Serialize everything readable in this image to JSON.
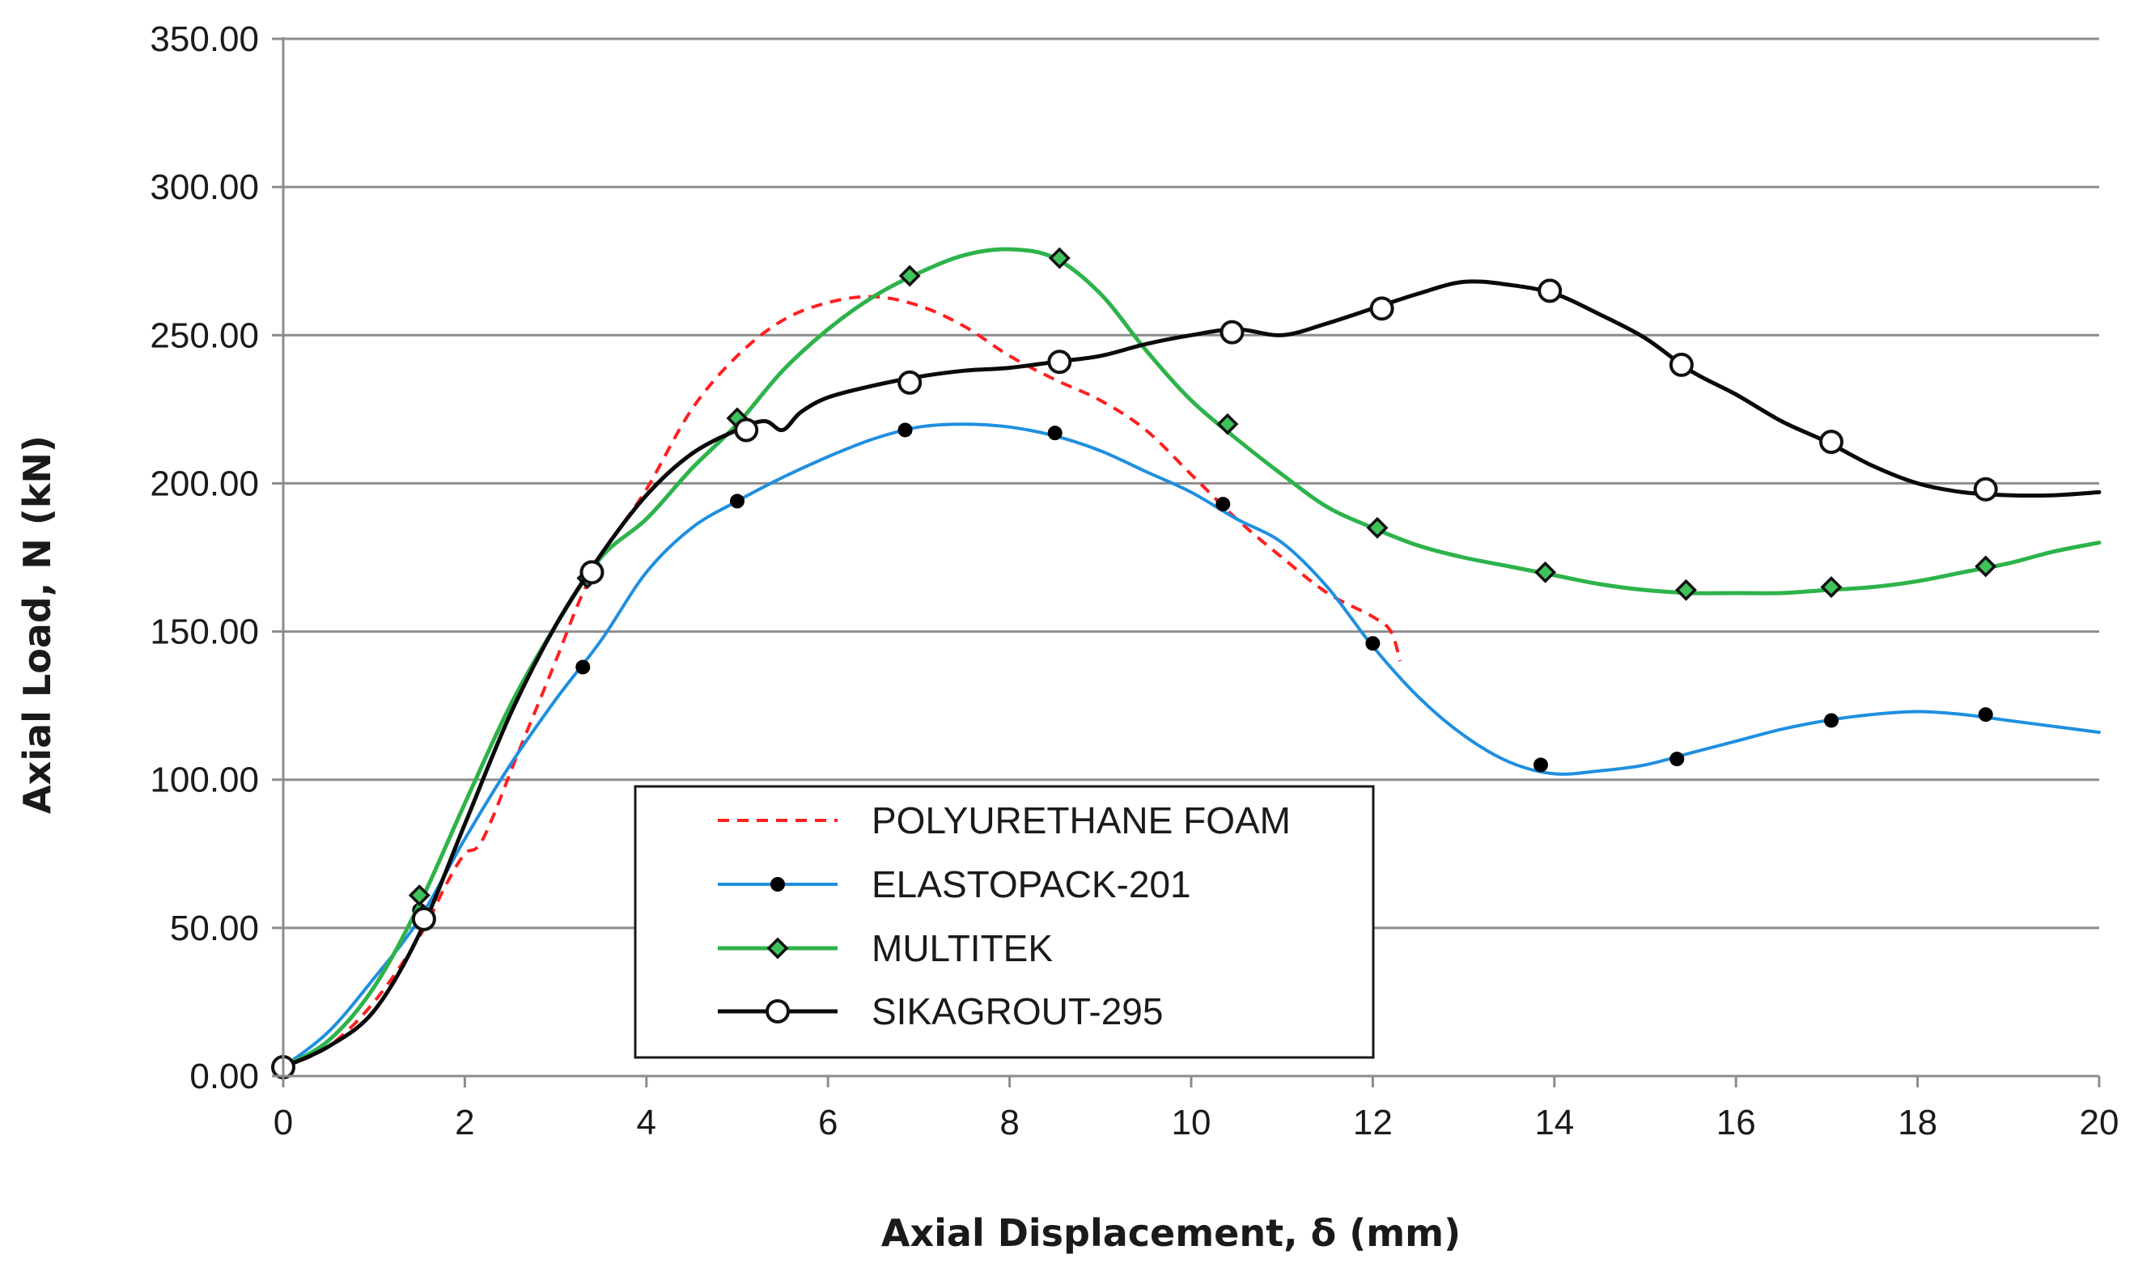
{
  "chart_data": {
    "type": "line",
    "title": "",
    "xlabel": "Axial Displacement, δ (mm)",
    "ylabel": "Axial Load, N (kN)",
    "xlim": [
      0,
      20
    ],
    "ylim": [
      0,
      350
    ],
    "x_ticks": [
      0,
      2,
      4,
      6,
      8,
      10,
      12,
      14,
      16,
      18,
      20
    ],
    "x_tick_labels": [
      "0",
      "2",
      "4",
      "6",
      "8",
      "10",
      "12",
      "14",
      "16",
      "18",
      "20"
    ],
    "y_ticks": [
      0,
      50,
      100,
      150,
      200,
      250,
      300,
      350
    ],
    "y_tick_labels": [
      "0.00",
      "50.00",
      "100.00",
      "150.00",
      "200.00",
      "250.00",
      "300.00",
      "350.00"
    ],
    "grid": "horizontal",
    "legend_position": "lower-center",
    "series": [
      {
        "name": "POLYURETHANE FOAM",
        "color": "#ff1f1f",
        "line_style": "dashed",
        "marker": "none",
        "curve": [
          [
            0,
            3
          ],
          [
            0.5,
            10
          ],
          [
            1.0,
            25
          ],
          [
            1.5,
            47
          ],
          [
            1.8,
            65
          ],
          [
            2.0,
            75
          ],
          [
            2.2,
            80
          ],
          [
            2.6,
            110
          ],
          [
            3.0,
            140
          ],
          [
            3.3,
            163
          ],
          [
            3.6,
            180
          ],
          [
            4.0,
            198
          ],
          [
            4.5,
            225
          ],
          [
            5.0,
            243
          ],
          [
            5.5,
            255
          ],
          [
            6.0,
            261
          ],
          [
            6.5,
            263
          ],
          [
            7.0,
            260
          ],
          [
            7.5,
            253
          ],
          [
            8.0,
            243
          ],
          [
            8.5,
            235
          ],
          [
            9.0,
            228
          ],
          [
            9.5,
            218
          ],
          [
            10.0,
            203
          ],
          [
            10.5,
            188
          ],
          [
            11.0,
            175
          ],
          [
            11.5,
            163
          ],
          [
            12.0,
            155
          ],
          [
            12.2,
            150
          ],
          [
            12.3,
            140
          ]
        ],
        "markers": []
      },
      {
        "name": "ELASTOPACK-201",
        "color": "#1f8fe0",
        "line_style": "solid",
        "marker": "filled-circle",
        "curve": [
          [
            0,
            3
          ],
          [
            0.5,
            15
          ],
          [
            1.0,
            33
          ],
          [
            1.5,
            53
          ],
          [
            2.0,
            80
          ],
          [
            2.5,
            105
          ],
          [
            3.0,
            127
          ],
          [
            3.5,
            147
          ],
          [
            4.0,
            170
          ],
          [
            4.5,
            185
          ],
          [
            5.0,
            194
          ],
          [
            5.5,
            202
          ],
          [
            6.0,
            209
          ],
          [
            6.5,
            215
          ],
          [
            7.0,
            219
          ],
          [
            7.5,
            220
          ],
          [
            8.0,
            219
          ],
          [
            8.5,
            216
          ],
          [
            9.0,
            211
          ],
          [
            9.5,
            204
          ],
          [
            10.0,
            197
          ],
          [
            10.5,
            188
          ],
          [
            11.0,
            180
          ],
          [
            11.5,
            165
          ],
          [
            12.0,
            145
          ],
          [
            12.5,
            128
          ],
          [
            13.0,
            115
          ],
          [
            13.5,
            106
          ],
          [
            14.0,
            102
          ],
          [
            14.5,
            103
          ],
          [
            15.0,
            105
          ],
          [
            15.5,
            109
          ],
          [
            16.0,
            113
          ],
          [
            16.5,
            117
          ],
          [
            17.0,
            120
          ],
          [
            17.5,
            122
          ],
          [
            18.0,
            123
          ],
          [
            18.5,
            122
          ],
          [
            19.0,
            120
          ],
          [
            19.5,
            118
          ],
          [
            20.0,
            116
          ]
        ],
        "markers": [
          [
            0,
            3
          ],
          [
            1.5,
            56
          ],
          [
            3.3,
            138
          ],
          [
            5.0,
            194
          ],
          [
            6.85,
            218
          ],
          [
            8.5,
            217
          ],
          [
            10.35,
            193
          ],
          [
            12.0,
            146
          ],
          [
            13.85,
            105
          ],
          [
            15.35,
            107
          ],
          [
            17.05,
            120
          ],
          [
            18.75,
            122
          ]
        ]
      },
      {
        "name": "MULTITEK",
        "color": "#2db34a",
        "line_style": "solid",
        "marker": "diamond",
        "curve": [
          [
            0,
            3
          ],
          [
            0.5,
            12
          ],
          [
            1.0,
            30
          ],
          [
            1.5,
            58
          ],
          [
            2.0,
            92
          ],
          [
            2.5,
            125
          ],
          [
            3.0,
            152
          ],
          [
            3.5,
            175
          ],
          [
            4.0,
            188
          ],
          [
            4.5,
            205
          ],
          [
            5.0,
            220
          ],
          [
            5.5,
            238
          ],
          [
            6.0,
            252
          ],
          [
            6.5,
            263
          ],
          [
            7.0,
            271
          ],
          [
            7.5,
            277
          ],
          [
            8.0,
            279
          ],
          [
            8.5,
            276
          ],
          [
            9.0,
            264
          ],
          [
            9.5,
            245
          ],
          [
            10.0,
            228
          ],
          [
            10.5,
            215
          ],
          [
            11.0,
            203
          ],
          [
            11.5,
            192
          ],
          [
            12.0,
            185
          ],
          [
            12.5,
            179
          ],
          [
            13.0,
            175
          ],
          [
            13.5,
            172
          ],
          [
            14.0,
            169
          ],
          [
            14.5,
            166
          ],
          [
            15.0,
            164
          ],
          [
            15.5,
            163
          ],
          [
            16.0,
            163
          ],
          [
            16.5,
            163
          ],
          [
            17.0,
            164
          ],
          [
            17.5,
            165
          ],
          [
            18.0,
            167
          ],
          [
            18.5,
            170
          ],
          [
            19.0,
            173
          ],
          [
            19.5,
            177
          ],
          [
            20.0,
            180
          ]
        ],
        "markers": [
          [
            0,
            3
          ],
          [
            1.5,
            61
          ],
          [
            3.35,
            168
          ],
          [
            5.0,
            222
          ],
          [
            6.9,
            270
          ],
          [
            8.55,
            276
          ],
          [
            10.4,
            220
          ],
          [
            12.05,
            185
          ],
          [
            13.9,
            170
          ],
          [
            15.45,
            164
          ],
          [
            17.05,
            165
          ],
          [
            18.75,
            172
          ]
        ]
      },
      {
        "name": "SIKAGROUT-295",
        "color": "#0a0a0a",
        "line_style": "solid",
        "marker": "open-circle",
        "curve": [
          [
            0,
            3
          ],
          [
            0.5,
            10
          ],
          [
            1.0,
            22
          ],
          [
            1.5,
            48
          ],
          [
            2.0,
            85
          ],
          [
            2.5,
            122
          ],
          [
            3.0,
            152
          ],
          [
            3.5,
            176
          ],
          [
            4.0,
            196
          ],
          [
            4.5,
            210
          ],
          [
            5.0,
            218
          ],
          [
            5.3,
            221
          ],
          [
            5.5,
            218
          ],
          [
            5.7,
            224
          ],
          [
            6.0,
            229
          ],
          [
            6.5,
            233
          ],
          [
            7.0,
            236
          ],
          [
            7.5,
            238
          ],
          [
            8.0,
            239
          ],
          [
            8.5,
            241
          ],
          [
            9.0,
            243
          ],
          [
            9.5,
            247
          ],
          [
            10.0,
            250
          ],
          [
            10.5,
            252
          ],
          [
            11.0,
            250
          ],
          [
            11.5,
            254
          ],
          [
            12.0,
            259
          ],
          [
            12.5,
            264
          ],
          [
            13.0,
            268
          ],
          [
            13.5,
            267
          ],
          [
            14.0,
            264
          ],
          [
            14.5,
            257
          ],
          [
            15.0,
            249
          ],
          [
            15.5,
            238
          ],
          [
            16.0,
            230
          ],
          [
            16.5,
            221
          ],
          [
            17.0,
            214
          ],
          [
            17.5,
            206
          ],
          [
            18.0,
            200
          ],
          [
            18.5,
            197
          ],
          [
            19.0,
            196
          ],
          [
            19.5,
            196
          ],
          [
            20.0,
            197
          ]
        ],
        "markers": [
          [
            0,
            3
          ],
          [
            1.55,
            53
          ],
          [
            3.4,
            170
          ],
          [
            5.1,
            218
          ],
          [
            6.9,
            234
          ],
          [
            8.55,
            241
          ],
          [
            10.45,
            251
          ],
          [
            12.1,
            259
          ],
          [
            13.95,
            265
          ],
          [
            15.4,
            240
          ],
          [
            17.05,
            214
          ],
          [
            18.75,
            198
          ]
        ]
      }
    ]
  }
}
